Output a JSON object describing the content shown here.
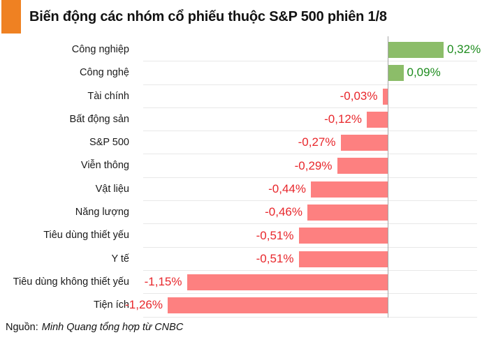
{
  "header": {
    "title": "Biến động các nhóm cổ phiếu thuộc S&P 500 phiên 1/8"
  },
  "source": {
    "prefix": "Nguồn:",
    "text": "Minh Quang tổng hợp từ CNBC"
  },
  "chart_data": {
    "type": "bar",
    "orientation": "horizontal",
    "title": "Biến động các nhóm cổ phiếu thuộc S&P 500 phiên 1/8",
    "categories": [
      "Công nghiệp",
      "Công nghệ",
      "Tài chính",
      "Bất động sản",
      "S&P 500",
      "Viễn thông",
      "Vật liệu",
      "Năng lượng",
      "Tiêu dùng thiết yếu",
      "Y tế",
      "Tiêu dùng không thiết yếu",
      "Tiện ích"
    ],
    "values": [
      0.32,
      0.09,
      -0.03,
      -0.12,
      -0.27,
      -0.29,
      -0.44,
      -0.46,
      -0.51,
      -0.51,
      -1.15,
      -1.26
    ],
    "value_labels": [
      "0,32%",
      "0,09%",
      "-0,03%",
      "-0,12%",
      "-0,27%",
      "-0,29%",
      "-0,44%",
      "-0,46%",
      "-0,51%",
      "-0,51%",
      "-1,15%",
      "-1,26%"
    ],
    "unit": "%",
    "xlim": [
      -1.4,
      0.51
    ],
    "grid": "horizontal row separators only",
    "legend": "none",
    "value_label_position": "outside bar end"
  },
  "colors": {
    "positive_bar": "#8cbd69",
    "negative_bar": "#fd8080",
    "positive_text": "#1e8c1e",
    "negative_text": "#e8272c",
    "accent_orange": "#ef8122",
    "gridline": "#e8e8e8",
    "axis_line": "#a6a6a6"
  }
}
